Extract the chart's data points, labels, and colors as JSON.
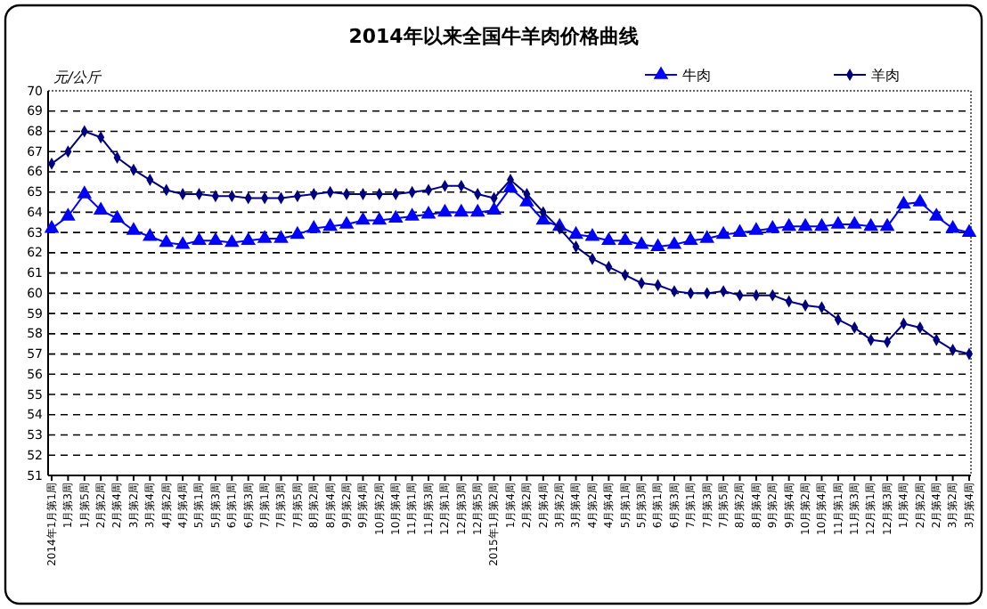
{
  "chart_data": {
    "type": "line",
    "title": "2014年以来全国牛羊肉价格曲线",
    "ylabel": "元/公斤",
    "categories": [
      "2014年1月第1周",
      "1月第3周",
      "1月第5周",
      "2月第2周",
      "2月第4周",
      "3月第2周",
      "3月第4周",
      "4月第2周",
      "4月第4周",
      "5月第1周",
      "5月第3周",
      "6月第1周",
      "6月第3周",
      "7月第1周",
      "7月第3周",
      "7月第5周",
      "8月第2周",
      "8月第4周",
      "9月第2周",
      "9月第4周",
      "10月第2周",
      "10月第4周",
      "11月第1周",
      "11月第3周",
      "12月第1周",
      "12月第3周",
      "12月第5周",
      "2015年1月第2周",
      "1月第4周",
      "2月第2周",
      "2月第4周",
      "3月第2周",
      "3月第4周",
      "4月第2周",
      "4月第4周",
      "5月第1周",
      "5月第3周",
      "6月第1周",
      "6月第3周",
      "7月第1周",
      "7月第3周",
      "7月第5周",
      "8月第2周",
      "8月第4周",
      "9月第2周",
      "9月第4周",
      "10月第2周",
      "10月第4周",
      "11月第1周",
      "11月第3周",
      "12月第1周",
      "12月第3周",
      "1月第4周",
      "2月第2周",
      "2月第4周",
      "3月第2周",
      "3月第4周"
    ],
    "series": [
      {
        "name": "牛肉",
        "color": "#0000ff",
        "marker": "triangle",
        "values": [
          63.2,
          63.8,
          64.9,
          64.1,
          63.7,
          63.1,
          62.8,
          62.5,
          62.4,
          62.6,
          62.6,
          62.5,
          62.6,
          62.7,
          62.7,
          62.9,
          63.2,
          63.3,
          63.4,
          63.6,
          63.6,
          63.7,
          63.8,
          63.9,
          64.0,
          64.0,
          64.0,
          64.1,
          65.2,
          64.5,
          63.6,
          63.3,
          62.9,
          62.8,
          62.6,
          62.6,
          62.4,
          62.3,
          62.4,
          62.6,
          62.7,
          62.9,
          63.0,
          63.1,
          63.2,
          63.3,
          63.3,
          63.3,
          63.4,
          63.4,
          63.3,
          63.3,
          64.4,
          64.5,
          63.8,
          63.2,
          63.0
        ]
      },
      {
        "name": "羊肉",
        "color": "#000080",
        "marker": "diamond",
        "values": [
          66.4,
          67.0,
          68.0,
          67.7,
          66.7,
          66.1,
          65.6,
          65.1,
          64.9,
          64.9,
          64.8,
          64.8,
          64.7,
          64.7,
          64.7,
          64.8,
          64.9,
          65.0,
          64.9,
          64.9,
          64.9,
          64.9,
          65.0,
          65.1,
          65.3,
          65.3,
          64.9,
          64.7,
          65.6,
          64.9,
          64.0,
          63.2,
          62.3,
          61.7,
          61.3,
          60.9,
          60.5,
          60.4,
          60.1,
          60.0,
          60.0,
          60.1,
          59.9,
          59.9,
          59.9,
          59.6,
          59.4,
          59.3,
          58.7,
          58.3,
          57.7,
          57.6,
          58.5,
          58.3,
          57.7,
          57.2,
          57.0
        ]
      }
    ],
    "ylim": [
      51,
      70
    ],
    "yticks": [
      51,
      52,
      53,
      54,
      55,
      56,
      57,
      58,
      59,
      60,
      61,
      62,
      63,
      64,
      65,
      66,
      67,
      68,
      69,
      70
    ],
    "grid": "y",
    "legend": "top right",
    "line_style": "solid"
  }
}
